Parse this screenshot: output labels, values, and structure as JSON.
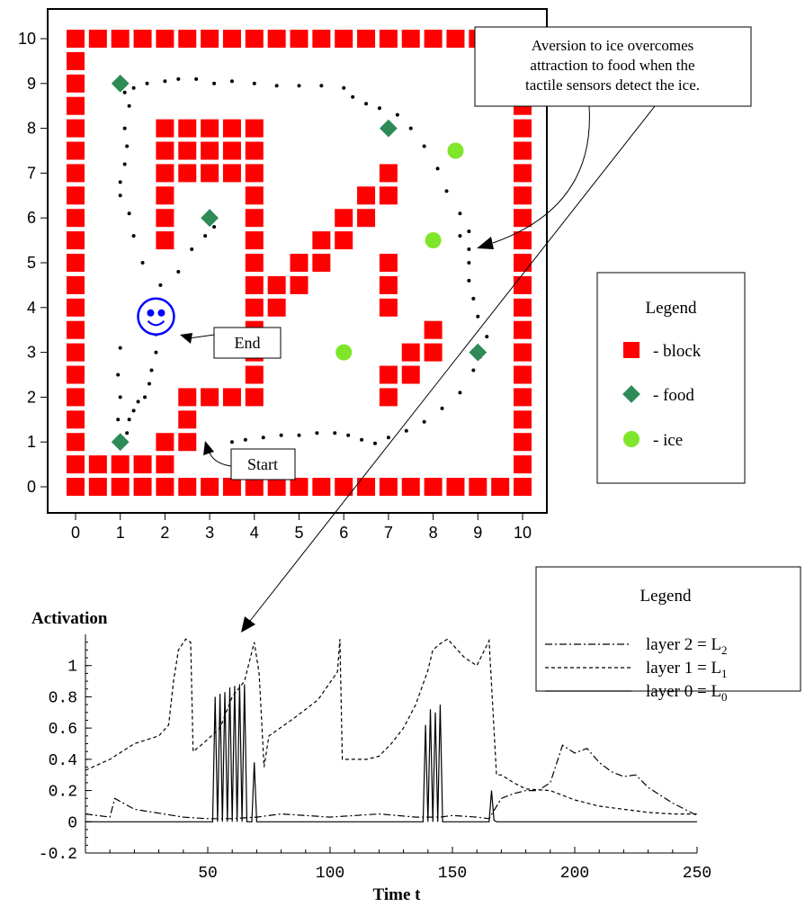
{
  "chart_data": [
    {
      "type": "scatter",
      "xlim": [
        0,
        10
      ],
      "ylim": [
        0,
        10
      ],
      "x_ticks": [
        "0",
        "1",
        "2",
        "3",
        "4",
        "5",
        "6",
        "7",
        "8",
        "9",
        "10"
      ],
      "y_ticks": [
        "0",
        "1",
        "2",
        "3",
        "4",
        "5",
        "6",
        "7",
        "8",
        "9",
        "10"
      ],
      "grid": false,
      "colors": {
        "block": "#ff0000",
        "food": "#2e8b57",
        "ice": "#7fe62a",
        "path": "#000000",
        "robot": "#0000ff"
      },
      "blocks": [
        [
          0,
          0
        ],
        [
          0.5,
          0
        ],
        [
          1,
          0
        ],
        [
          1.5,
          0
        ],
        [
          2,
          0
        ],
        [
          2.5,
          0
        ],
        [
          3,
          0
        ],
        [
          3.5,
          0
        ],
        [
          4,
          0
        ],
        [
          4.5,
          0
        ],
        [
          5,
          0
        ],
        [
          5.5,
          0
        ],
        [
          6,
          0
        ],
        [
          6.5,
          0
        ],
        [
          7,
          0
        ],
        [
          7.5,
          0
        ],
        [
          8,
          0
        ],
        [
          8.5,
          0
        ],
        [
          9,
          0
        ],
        [
          9.5,
          0
        ],
        [
          10,
          0
        ],
        [
          0,
          10
        ],
        [
          0.5,
          10
        ],
        [
          1,
          10
        ],
        [
          1.5,
          10
        ],
        [
          2,
          10
        ],
        [
          2.5,
          10
        ],
        [
          3,
          10
        ],
        [
          3.5,
          10
        ],
        [
          4,
          10
        ],
        [
          4.5,
          10
        ],
        [
          5,
          10
        ],
        [
          5.5,
          10
        ],
        [
          6,
          10
        ],
        [
          6.5,
          10
        ],
        [
          7,
          10
        ],
        [
          7.5,
          10
        ],
        [
          8,
          10
        ],
        [
          8.5,
          10
        ],
        [
          9,
          10
        ],
        [
          0,
          0.5
        ],
        [
          0,
          1
        ],
        [
          0,
          1.5
        ],
        [
          0,
          2
        ],
        [
          0,
          2.5
        ],
        [
          0,
          3
        ],
        [
          0,
          3.5
        ],
        [
          0,
          4
        ],
        [
          0,
          4.5
        ],
        [
          0,
          5
        ],
        [
          0,
          5.5
        ],
        [
          0,
          6
        ],
        [
          0,
          6.5
        ],
        [
          0,
          7
        ],
        [
          0,
          7.5
        ],
        [
          0,
          8
        ],
        [
          0,
          8.5
        ],
        [
          0,
          9
        ],
        [
          0,
          9.5
        ],
        [
          10,
          0.5
        ],
        [
          10,
          1
        ],
        [
          10,
          1.5
        ],
        [
          10,
          2
        ],
        [
          10,
          2.5
        ],
        [
          10,
          3
        ],
        [
          10,
          3.5
        ],
        [
          10,
          4
        ],
        [
          10,
          4.5
        ],
        [
          10,
          5
        ],
        [
          10,
          5.5
        ],
        [
          10,
          6
        ],
        [
          10,
          6.5
        ],
        [
          10,
          7
        ],
        [
          10,
          7.5
        ],
        [
          10,
          8
        ],
        [
          10,
          8.5
        ],
        [
          0.5,
          0.5
        ],
        [
          1,
          0.5
        ],
        [
          1.5,
          0.5
        ],
        [
          2,
          0.5
        ],
        [
          2,
          1
        ],
        [
          2.5,
          1
        ],
        [
          2.5,
          1.5
        ],
        [
          2.5,
          2
        ],
        [
          3,
          2
        ],
        [
          3.5,
          2
        ],
        [
          4,
          2
        ],
        [
          4,
          2.5
        ],
        [
          4,
          3
        ],
        [
          4,
          3.5
        ],
        [
          4,
          4
        ],
        [
          4,
          4.5
        ],
        [
          4,
          5
        ],
        [
          4,
          5.5
        ],
        [
          4,
          6
        ],
        [
          4,
          6.5
        ],
        [
          4,
          7
        ],
        [
          4,
          7.5
        ],
        [
          4,
          8
        ],
        [
          2,
          5.5
        ],
        [
          2,
          6
        ],
        [
          2,
          6.5
        ],
        [
          2,
          7
        ],
        [
          2,
          7.5
        ],
        [
          2,
          8
        ],
        [
          2.5,
          8
        ],
        [
          3,
          8
        ],
        [
          3.5,
          8
        ],
        [
          2.5,
          7.5
        ],
        [
          3,
          7.5
        ],
        [
          3.5,
          7.5
        ],
        [
          2.5,
          7
        ],
        [
          3,
          7
        ],
        [
          3.5,
          7
        ],
        [
          4.5,
          4.5
        ],
        [
          4.5,
          4
        ],
        [
          5,
          5
        ],
        [
          5,
          4.5
        ],
        [
          5.5,
          5.5
        ],
        [
          5.5,
          5
        ],
        [
          6,
          6
        ],
        [
          6,
          5.5
        ],
        [
          6.5,
          6.5
        ],
        [
          6.5,
          6
        ],
        [
          7,
          7
        ],
        [
          7,
          6.5
        ],
        [
          7,
          5
        ],
        [
          7,
          4.5
        ],
        [
          7,
          4
        ],
        [
          8,
          3.5
        ],
        [
          8,
          3
        ],
        [
          7.5,
          3
        ],
        [
          7.5,
          2.5
        ],
        [
          7,
          2.5
        ],
        [
          7,
          2
        ]
      ],
      "food": [
        [
          1,
          9
        ],
        [
          7,
          8
        ],
        [
          3,
          6
        ],
        [
          9,
          3
        ],
        [
          1,
          1
        ]
      ],
      "ice": [
        [
          8.5,
          7.5
        ],
        [
          8,
          5.5
        ],
        [
          6,
          3
        ]
      ],
      "robot_position": [
        1.8,
        3.8
      ],
      "path": [
        [
          3.5,
          1
        ],
        [
          3.8,
          1.05
        ],
        [
          4.2,
          1.1
        ],
        [
          4.6,
          1.15
        ],
        [
          5,
          1.15
        ],
        [
          5.4,
          1.2
        ],
        [
          5.8,
          1.2
        ],
        [
          6.1,
          1.15
        ],
        [
          6.4,
          1.05
        ],
        [
          6.7,
          0.97
        ],
        [
          7,
          1.1
        ],
        [
          7.4,
          1.25
        ],
        [
          7.8,
          1.45
        ],
        [
          8.2,
          1.75
        ],
        [
          8.6,
          2.1
        ],
        [
          8.9,
          2.6
        ],
        [
          9.05,
          2.9
        ],
        [
          9.2,
          3.35
        ],
        [
          9.0,
          3.8
        ],
        [
          8.9,
          4.2
        ],
        [
          8.8,
          4.6
        ],
        [
          8.8,
          5
        ],
        [
          8.8,
          5.3
        ],
        [
          8.6,
          5.6
        ],
        [
          8.8,
          5.7
        ],
        [
          8.6,
          6.1
        ],
        [
          8.3,
          6.6
        ],
        [
          8.1,
          7.1
        ],
        [
          7.8,
          7.6
        ],
        [
          7.5,
          8
        ],
        [
          7.2,
          8.3
        ],
        [
          6.8,
          8.45
        ],
        [
          6.5,
          8.55
        ],
        [
          6.2,
          8.7
        ],
        [
          6,
          8.9
        ],
        [
          5.5,
          8.95
        ],
        [
          5,
          8.95
        ],
        [
          4.5,
          8.95
        ],
        [
          4,
          9
        ],
        [
          3.5,
          9.05
        ],
        [
          3.1,
          9.0
        ],
        [
          2.7,
          9.1
        ],
        [
          2.3,
          9.1
        ],
        [
          2,
          9.05
        ],
        [
          1.6,
          9.0
        ],
        [
          1.3,
          8.9
        ],
        [
          1.1,
          8.8
        ],
        [
          1.2,
          8.5
        ],
        [
          1.1,
          8.0
        ],
        [
          1.15,
          7.6
        ],
        [
          1.1,
          7.2
        ],
        [
          1.0,
          6.8
        ],
        [
          1.0,
          6.5
        ],
        [
          1.2,
          6.1
        ],
        [
          1.3,
          5.6
        ],
        [
          1.5,
          5.0
        ],
        [
          1.9,
          4.5
        ],
        [
          2.3,
          4.8
        ],
        [
          2.6,
          5.3
        ],
        [
          2.9,
          5.6
        ],
        [
          3.1,
          5.8
        ],
        [
          3.05,
          6.0
        ],
        [
          1.8,
          3.4
        ],
        [
          1.8,
          3.0
        ],
        [
          1.7,
          2.6
        ],
        [
          1.65,
          2.3
        ],
        [
          1.55,
          2.0
        ],
        [
          1.4,
          1.9
        ],
        [
          1.3,
          1.7
        ],
        [
          1.2,
          1.5
        ],
        [
          1.15,
          1.2
        ],
        [
          1.05,
          1.0
        ],
        [
          0.95,
          1.5
        ],
        [
          1.0,
          2.0
        ],
        [
          0.95,
          2.5
        ],
        [
          1.0,
          3.1
        ]
      ]
    },
    {
      "type": "line",
      "ylabel": "Activation",
      "xlabel": "Time t",
      "xlim": [
        0,
        250
      ],
      "ylim": [
        -0.2,
        1.2
      ],
      "x_ticks": [
        "50",
        "100",
        "150",
        "200",
        "250"
      ],
      "y_ticks": [
        "-0.2",
        "0",
        "0.2",
        "0.4",
        "0.6",
        "0.8",
        "1"
      ],
      "grid": false,
      "series": [
        {
          "name": "layer 2 = L",
          "sub": "2",
          "style": "dash-dot",
          "x": [
            0,
            10,
            12,
            20,
            40,
            50,
            60,
            70,
            80,
            90,
            100,
            120,
            135,
            145,
            150,
            160,
            165,
            170,
            175,
            180,
            185,
            190,
            195,
            200,
            205,
            210,
            215,
            220,
            225,
            230,
            240,
            250
          ],
          "y": [
            0.05,
            0.03,
            0.15,
            0.08,
            0.03,
            0.02,
            0.02,
            0.03,
            0.05,
            0.04,
            0.03,
            0.05,
            0.03,
            0.03,
            0.04,
            0.03,
            0.02,
            0.15,
            0.18,
            0.2,
            0.2,
            0.25,
            0.49,
            0.44,
            0.47,
            0.38,
            0.32,
            0.29,
            0.3,
            0.22,
            0.12,
            0.04
          ]
        },
        {
          "name": "layer 1 = L",
          "sub": "1",
          "style": "dash",
          "x": [
            0,
            10,
            20,
            30,
            34,
            36,
            38,
            41,
            43,
            44,
            48,
            55,
            60,
            65,
            69,
            71,
            73,
            75,
            85,
            95,
            103,
            104,
            105,
            110,
            115,
            120,
            125,
            130,
            135,
            140,
            142,
            145,
            148,
            155,
            160,
            165,
            168,
            170,
            175,
            180,
            190,
            200,
            210,
            220,
            230,
            240,
            250
          ],
          "y": [
            0.33,
            0.4,
            0.5,
            0.55,
            0.62,
            0.9,
            1.1,
            1.17,
            1.15,
            0.45,
            0.5,
            0.6,
            0.8,
            0.9,
            1.15,
            0.95,
            0.35,
            0.55,
            0.66,
            0.78,
            0.96,
            1.17,
            0.4,
            0.4,
            0.4,
            0.42,
            0.5,
            0.6,
            0.75,
            0.97,
            1.1,
            1.14,
            1.17,
            1.05,
            1.0,
            1.16,
            0.3,
            0.3,
            0.25,
            0.21,
            0.2,
            0.14,
            0.1,
            0.08,
            0.06,
            0.05,
            0.05
          ]
        },
        {
          "name": "layer 0 = L",
          "sub": "0",
          "style": "solid",
          "x": [
            0,
            52,
            53,
            54,
            55,
            56,
            57,
            58,
            59,
            60,
            61,
            62,
            63,
            64,
            65,
            66,
            67,
            68,
            69,
            70,
            71,
            138,
            139,
            140,
            141,
            142,
            143,
            144,
            145,
            146,
            147,
            148,
            165,
            166,
            167,
            168,
            250
          ],
          "y": [
            0,
            0,
            0.8,
            0,
            0.82,
            0,
            0.83,
            0,
            0.86,
            0,
            0.87,
            0,
            0.88,
            0,
            0.88,
            0,
            0,
            0,
            0.38,
            0,
            0,
            0,
            0.62,
            0,
            0.72,
            0,
            0.7,
            0,
            0.75,
            0,
            0,
            0,
            0,
            0.2,
            0.01,
            0,
            0
          ]
        }
      ]
    }
  ],
  "maze": {
    "legend_title": "Legend",
    "legend_block": "- block",
    "legend_food": "- food",
    "legend_ice": "- ice",
    "annotation": [
      "Aversion to ice overcomes",
      "attraction to food when the",
      "tactile sensors detect the ice."
    ],
    "end_label": "End",
    "start_label": "Start"
  },
  "activation": {
    "legend_title": "Legend"
  }
}
